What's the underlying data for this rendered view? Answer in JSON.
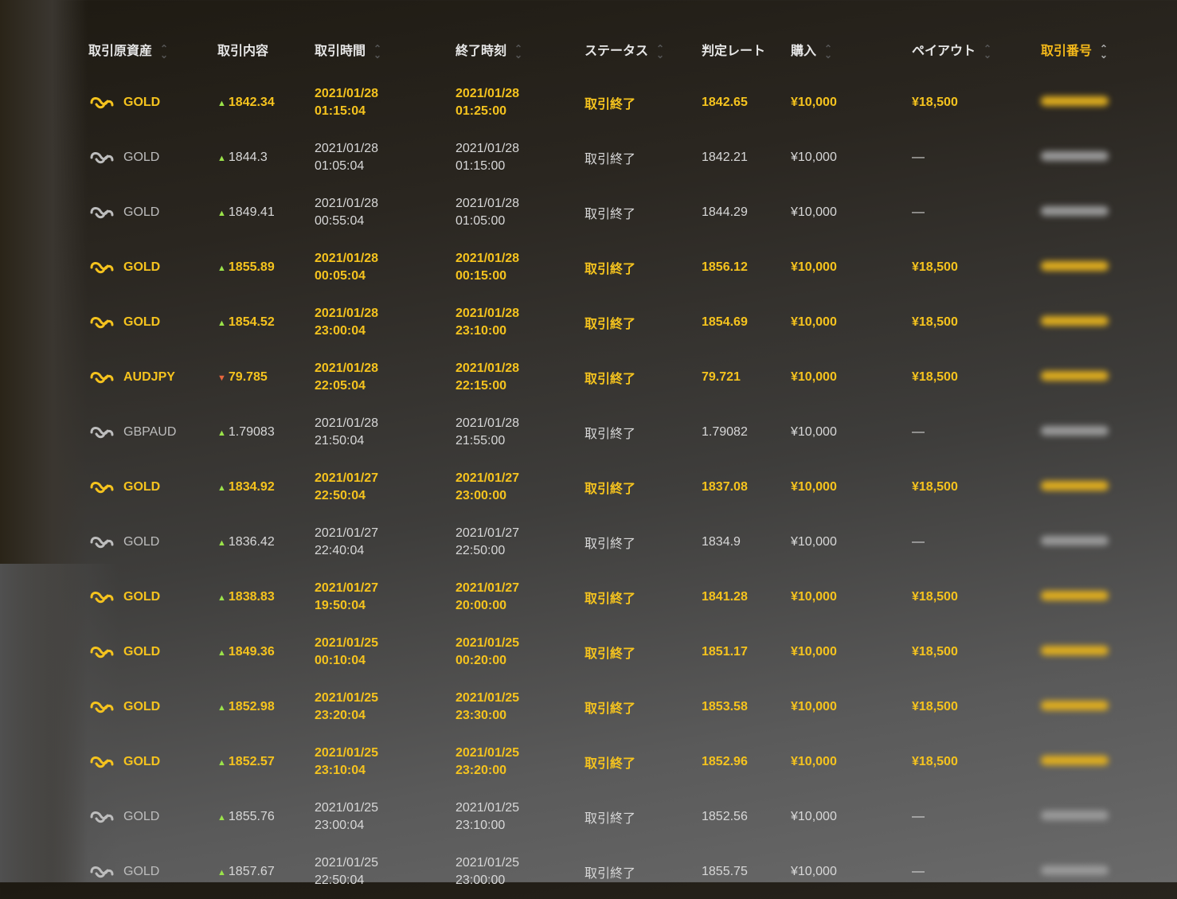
{
  "headers": [
    "取引原資産",
    "取引内容",
    "取引時間",
    "終了時刻",
    "ステータス",
    "判定レート",
    "購入",
    "ペイアウト",
    "取引番号"
  ],
  "colors": {
    "win": "#f5c31e",
    "normal": "#d8d8d8",
    "up": "#9be34a",
    "down": "#e8673e"
  },
  "rows": [
    {
      "asset": "GOLD",
      "dir": "up",
      "rate": "1842.34",
      "start_date": "2021/01/28",
      "start_time": "01:15:04",
      "end_date": "2021/01/28",
      "end_time": "01:25:00",
      "status": "取引終了",
      "judge": "1842.65",
      "buy": "¥10,000",
      "payout": "¥18,500",
      "win": true
    },
    {
      "asset": "GOLD",
      "dir": "up",
      "rate": "1844.3",
      "start_date": "2021/01/28",
      "start_time": "01:05:04",
      "end_date": "2021/01/28",
      "end_time": "01:15:00",
      "status": "取引終了",
      "judge": "1842.21",
      "buy": "¥10,000",
      "payout": "—",
      "win": false
    },
    {
      "asset": "GOLD",
      "dir": "up",
      "rate": "1849.41",
      "start_date": "2021/01/28",
      "start_time": "00:55:04",
      "end_date": "2021/01/28",
      "end_time": "01:05:00",
      "status": "取引終了",
      "judge": "1844.29",
      "buy": "¥10,000",
      "payout": "—",
      "win": false
    },
    {
      "asset": "GOLD",
      "dir": "up",
      "rate": "1855.89",
      "start_date": "2021/01/28",
      "start_time": "00:05:04",
      "end_date": "2021/01/28",
      "end_time": "00:15:00",
      "status": "取引終了",
      "judge": "1856.12",
      "buy": "¥10,000",
      "payout": "¥18,500",
      "win": true
    },
    {
      "asset": "GOLD",
      "dir": "up",
      "rate": "1854.52",
      "start_date": "2021/01/28",
      "start_time": "23:00:04",
      "end_date": "2021/01/28",
      "end_time": "23:10:00",
      "status": "取引終了",
      "judge": "1854.69",
      "buy": "¥10,000",
      "payout": "¥18,500",
      "win": true
    },
    {
      "asset": "AUDJPY",
      "dir": "down",
      "rate": "79.785",
      "start_date": "2021/01/28",
      "start_time": "22:05:04",
      "end_date": "2021/01/28",
      "end_time": "22:15:00",
      "status": "取引終了",
      "judge": "79.721",
      "buy": "¥10,000",
      "payout": "¥18,500",
      "win": true
    },
    {
      "asset": "GBPAUD",
      "dir": "up",
      "rate": "1.79083",
      "start_date": "2021/01/28",
      "start_time": "21:50:04",
      "end_date": "2021/01/28",
      "end_time": "21:55:00",
      "status": "取引終了",
      "judge": "1.79082",
      "buy": "¥10,000",
      "payout": "—",
      "win": false
    },
    {
      "asset": "GOLD",
      "dir": "up",
      "rate": "1834.92",
      "start_date": "2021/01/27",
      "start_time": "22:50:04",
      "end_date": "2021/01/27",
      "end_time": "23:00:00",
      "status": "取引終了",
      "judge": "1837.08",
      "buy": "¥10,000",
      "payout": "¥18,500",
      "win": true
    },
    {
      "asset": "GOLD",
      "dir": "up",
      "rate": "1836.42",
      "start_date": "2021/01/27",
      "start_time": "22:40:04",
      "end_date": "2021/01/27",
      "end_time": "22:50:00",
      "status": "取引終了",
      "judge": "1834.9",
      "buy": "¥10,000",
      "payout": "—",
      "win": false
    },
    {
      "asset": "GOLD",
      "dir": "up",
      "rate": "1838.83",
      "start_date": "2021/01/27",
      "start_time": "19:50:04",
      "end_date": "2021/01/27",
      "end_time": "20:00:00",
      "status": "取引終了",
      "judge": "1841.28",
      "buy": "¥10,000",
      "payout": "¥18,500",
      "win": true
    },
    {
      "asset": "GOLD",
      "dir": "up",
      "rate": "1849.36",
      "start_date": "2021/01/25",
      "start_time": "00:10:04",
      "end_date": "2021/01/25",
      "end_time": "00:20:00",
      "status": "取引終了",
      "judge": "1851.17",
      "buy": "¥10,000",
      "payout": "¥18,500",
      "win": true
    },
    {
      "asset": "GOLD",
      "dir": "up",
      "rate": "1852.98",
      "start_date": "2021/01/25",
      "start_time": "23:20:04",
      "end_date": "2021/01/25",
      "end_time": "23:30:00",
      "status": "取引終了",
      "judge": "1853.58",
      "buy": "¥10,000",
      "payout": "¥18,500",
      "win": true
    },
    {
      "asset": "GOLD",
      "dir": "up",
      "rate": "1852.57",
      "start_date": "2021/01/25",
      "start_time": "23:10:04",
      "end_date": "2021/01/25",
      "end_time": "23:20:00",
      "status": "取引終了",
      "judge": "1852.96",
      "buy": "¥10,000",
      "payout": "¥18,500",
      "win": true
    },
    {
      "asset": "GOLD",
      "dir": "up",
      "rate": "1855.76",
      "start_date": "2021/01/25",
      "start_time": "23:00:04",
      "end_date": "2021/01/25",
      "end_time": "23:10:00",
      "status": "取引終了",
      "judge": "1852.56",
      "buy": "¥10,000",
      "payout": "—",
      "win": false
    },
    {
      "asset": "GOLD",
      "dir": "up",
      "rate": "1857.67",
      "start_date": "2021/01/25",
      "start_time": "22:50:04",
      "end_date": "2021/01/25",
      "end_time": "23:00:00",
      "status": "取引終了",
      "judge": "1855.75",
      "buy": "¥10,000",
      "payout": "—",
      "win": false
    }
  ]
}
